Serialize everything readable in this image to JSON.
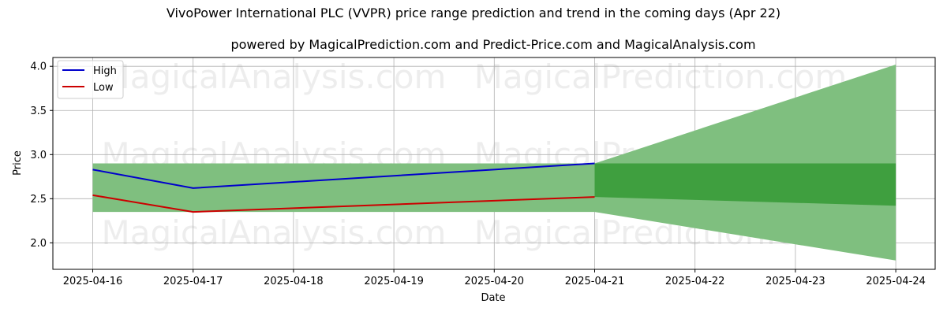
{
  "chart_data": {
    "type": "area",
    "title": "VivoPower International PLC (VVPR) price range prediction and trend in the coming days (Apr 22)",
    "subtitle": "powered by MagicalPrediction.com and Predict-Price.com and MagicalAnalysis.com",
    "xlabel": "Date",
    "ylabel": "Price",
    "x": [
      "2025-04-16",
      "2025-04-17",
      "2025-04-18",
      "2025-04-19",
      "2025-04-20",
      "2025-04-21",
      "2025-04-22",
      "2025-04-23",
      "2025-04-24"
    ],
    "xlim": [
      "2025-04-16",
      "2025-04-24"
    ],
    "ylim": [
      1.7,
      4.1
    ],
    "yticks": [
      2.0,
      2.5,
      3.0,
      3.5,
      4.0
    ],
    "ytick_labels": [
      "2.0",
      "2.5",
      "3.0",
      "3.5",
      "4.0"
    ],
    "grid": true,
    "legend_position": "top-left",
    "series": [
      {
        "name": "High",
        "color": "#0000cc",
        "x": [
          "2025-04-16",
          "2025-04-17",
          "2025-04-21"
        ],
        "values": [
          2.83,
          2.62,
          2.9
        ]
      },
      {
        "name": "Low",
        "color": "#cc0000",
        "x": [
          "2025-04-16",
          "2025-04-17",
          "2025-04-21"
        ],
        "values": [
          2.54,
          2.35,
          2.52
        ]
      }
    ],
    "historical_band": {
      "color": "#7fbf7f",
      "x": [
        "2025-04-16",
        "2025-04-21"
      ],
      "upper": 2.9,
      "lower": 2.35
    },
    "prediction_outer_band": {
      "color": "#7fbf7f",
      "x": [
        "2025-04-21",
        "2025-04-24"
      ],
      "upper": [
        2.9,
        4.02
      ],
      "lower": [
        2.35,
        1.8
      ]
    },
    "prediction_inner_band": {
      "color": "#3f9f3f",
      "x": [
        "2025-04-21",
        "2025-04-24"
      ],
      "upper": [
        2.9,
        2.9
      ],
      "lower": [
        2.52,
        2.42
      ]
    },
    "watermarks": [
      "MagicalAnalysis.com",
      "MagicalPrediction.com"
    ]
  }
}
